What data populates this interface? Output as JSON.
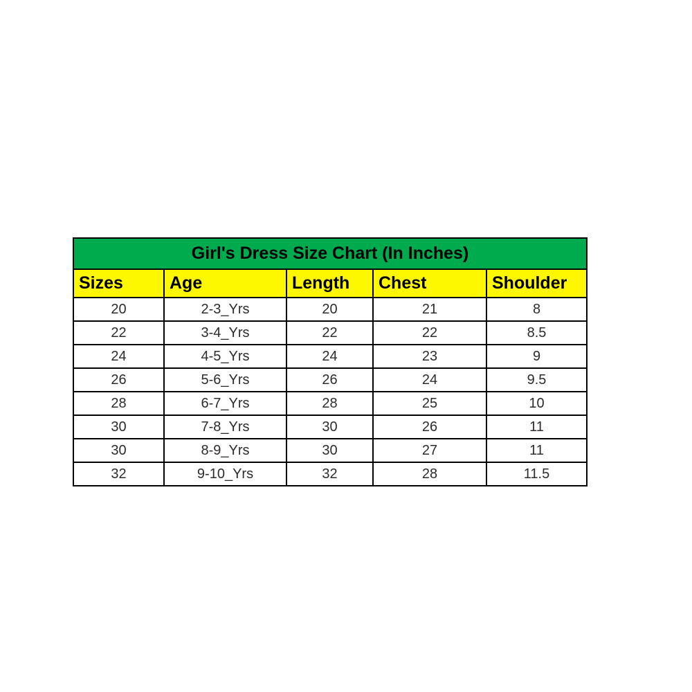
{
  "chart_data": {
    "type": "table",
    "title": "Girl's Dress Size Chart (In Inches)",
    "columns": [
      "Sizes",
      "Age",
      "Length",
      "Chest",
      "Shoulder"
    ],
    "rows": [
      [
        "20",
        "2-3_Yrs",
        "20",
        "21",
        "8"
      ],
      [
        "22",
        "3-4_Yrs",
        "22",
        "22",
        "8.5"
      ],
      [
        "24",
        "4-5_Yrs",
        "24",
        "23",
        "9"
      ],
      [
        "26",
        "5-6_Yrs",
        "26",
        "24",
        "9.5"
      ],
      [
        "28",
        "6-7_Yrs",
        "28",
        "25",
        "10"
      ],
      [
        "30",
        "7-8_Yrs",
        "30",
        "26",
        "11"
      ],
      [
        "30",
        "8-9_Yrs",
        "30",
        "27",
        "11"
      ],
      [
        "32",
        "9-10_Yrs",
        "32",
        "28",
        "11.5"
      ]
    ],
    "colors": {
      "title_bg": "#00ab4e",
      "header_bg": "#fdf800",
      "border": "#000000",
      "title_text": "#000000",
      "header_text": "#000000",
      "data_text": "#2e2a2e"
    },
    "layout_hints": {
      "title_row": "merged across all 5 columns, centered",
      "header_alignment": "left",
      "data_alignment": "center",
      "grid": "on"
    }
  }
}
